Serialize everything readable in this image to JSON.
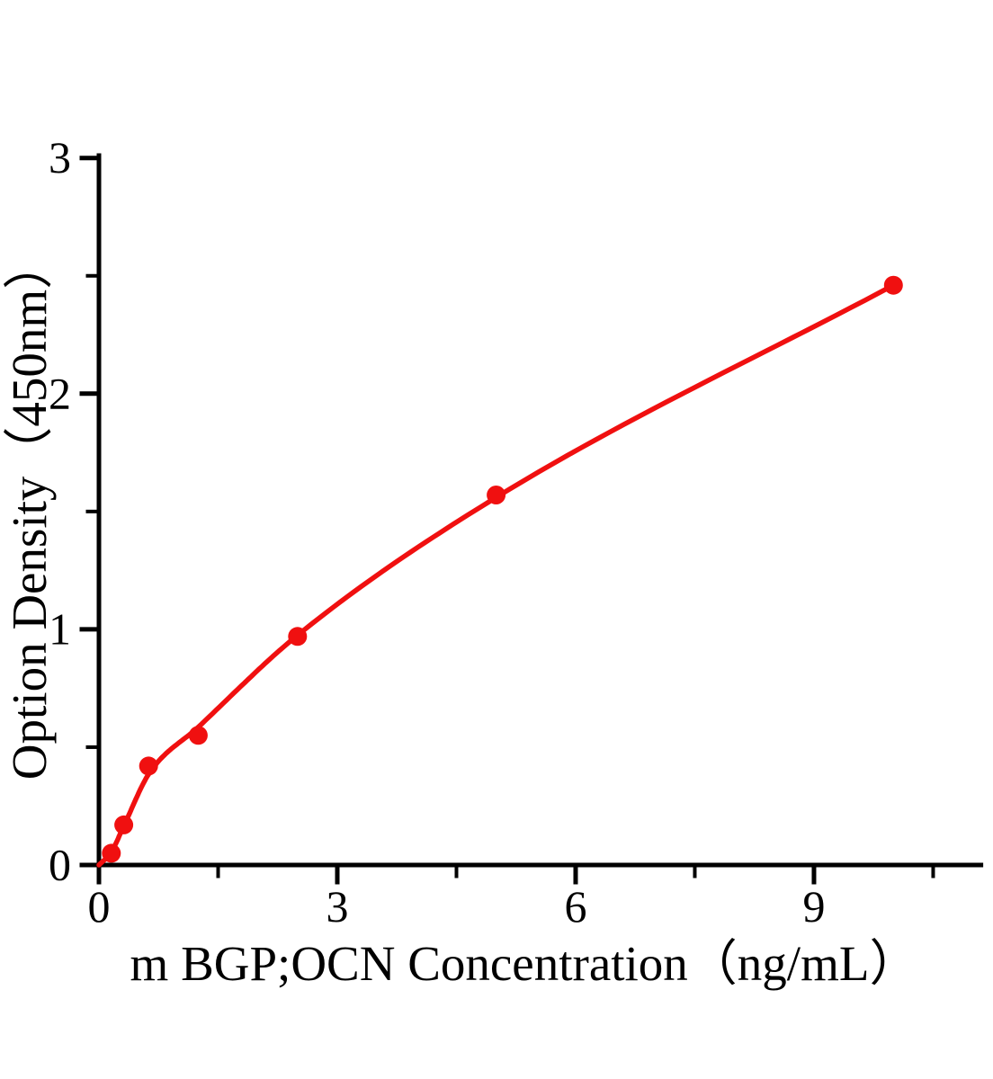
{
  "page": {
    "background_color": "#ffffff"
  },
  "chart_data": {
    "type": "scatter",
    "title": "",
    "xlabel": "m BGP;OCN Concentration（ng/mL）",
    "ylabel": "Option Density（450nm）",
    "xlim": [
      0,
      11.13
    ],
    "ylim": [
      0,
      3.02
    ],
    "grid": false,
    "legend_position": "none",
    "x_major_ticks": [
      0,
      3,
      6,
      9
    ],
    "x_minor_ticks": [
      1.5,
      4.5,
      7.5,
      10.5
    ],
    "y_major_ticks": [
      0,
      1,
      2,
      3
    ],
    "y_minor_ticks": [
      0.5,
      1.5,
      2.5
    ],
    "series": [
      {
        "marker": "circle",
        "marker_color": "#f01010",
        "line_color": "#f01010",
        "x": [
          0.156,
          0.312,
          0.625,
          1.25,
          2.5,
          5,
          10
        ],
        "y": [
          0.05,
          0.17,
          0.42,
          0.55,
          0.97,
          1.57,
          2.46
        ]
      }
    ],
    "fit_curve": {
      "color": "#f01010",
      "x": [
        0,
        0.156,
        0.312,
        0.625,
        1.25,
        2.5,
        5,
        10
      ],
      "y": [
        0,
        0.055,
        0.165,
        0.385,
        0.585,
        0.975,
        1.56,
        2.46
      ]
    },
    "axis_color": "#000000",
    "text_color": "#000000"
  }
}
